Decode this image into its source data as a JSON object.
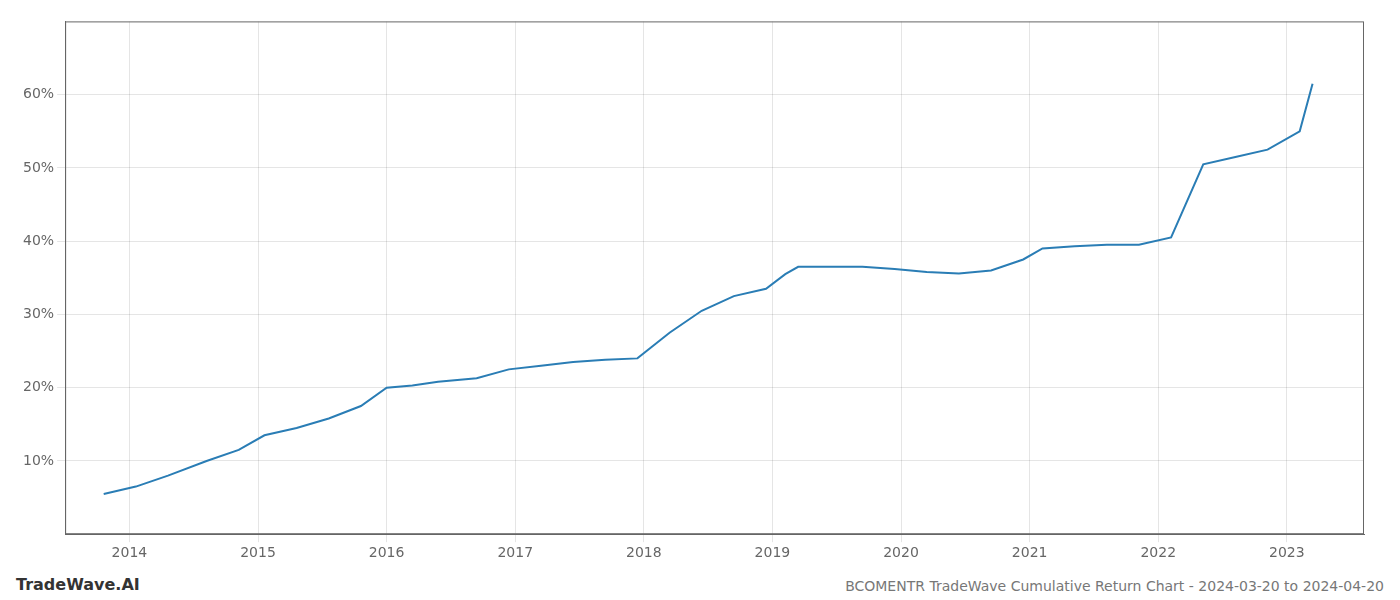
{
  "chart_data": {
    "type": "line",
    "title": "BCOMENTR TradeWave Cumulative Return Chart - 2024-03-20 to 2024-04-20",
    "annotations": [
      "TradeWave.AI"
    ],
    "x": [
      2013.8,
      2014.05,
      2014.3,
      2014.6,
      2014.85,
      2015.05,
      2015.3,
      2015.55,
      2015.8,
      2016.0,
      2016.2,
      2016.4,
      2016.7,
      2016.95,
      2017.2,
      2017.45,
      2017.7,
      2017.95,
      2018.2,
      2018.45,
      2018.7,
      2018.95,
      2019.1,
      2019.2,
      2019.45,
      2019.7,
      2019.95,
      2020.2,
      2020.45,
      2020.7,
      2020.95,
      2021.1,
      2021.35,
      2021.6,
      2021.85,
      2022.1,
      2022.35,
      2022.6,
      2022.85,
      2023.1,
      2023.2
    ],
    "values": [
      5.5,
      6.5,
      8.0,
      10.0,
      11.5,
      13.5,
      14.5,
      15.8,
      17.5,
      20.0,
      20.3,
      20.8,
      21.3,
      22.5,
      23.0,
      23.5,
      23.8,
      24.0,
      27.5,
      30.5,
      32.5,
      33.5,
      35.5,
      36.5,
      36.5,
      36.5,
      36.2,
      35.8,
      35.6,
      36.0,
      37.5,
      39.0,
      39.3,
      39.5,
      39.5,
      40.5,
      50.5,
      51.5,
      52.5,
      55.0,
      61.5
    ],
    "color": "#2a7db5",
    "xlim": [
      2013.5,
      2023.6
    ],
    "xticks": [
      2014,
      2015,
      2016,
      2017,
      2018,
      2019,
      2020,
      2021,
      2022,
      2023
    ],
    "ylim": [
      0,
      70
    ],
    "yticks": [
      {
        "value": 10,
        "label": "10%"
      },
      {
        "value": 20,
        "label": "20%"
      },
      {
        "value": 30,
        "label": "30%"
      },
      {
        "value": 40,
        "label": "40%"
      },
      {
        "value": 50,
        "label": "50%"
      },
      {
        "value": 60,
        "label": "60%"
      }
    ],
    "grid": true
  }
}
